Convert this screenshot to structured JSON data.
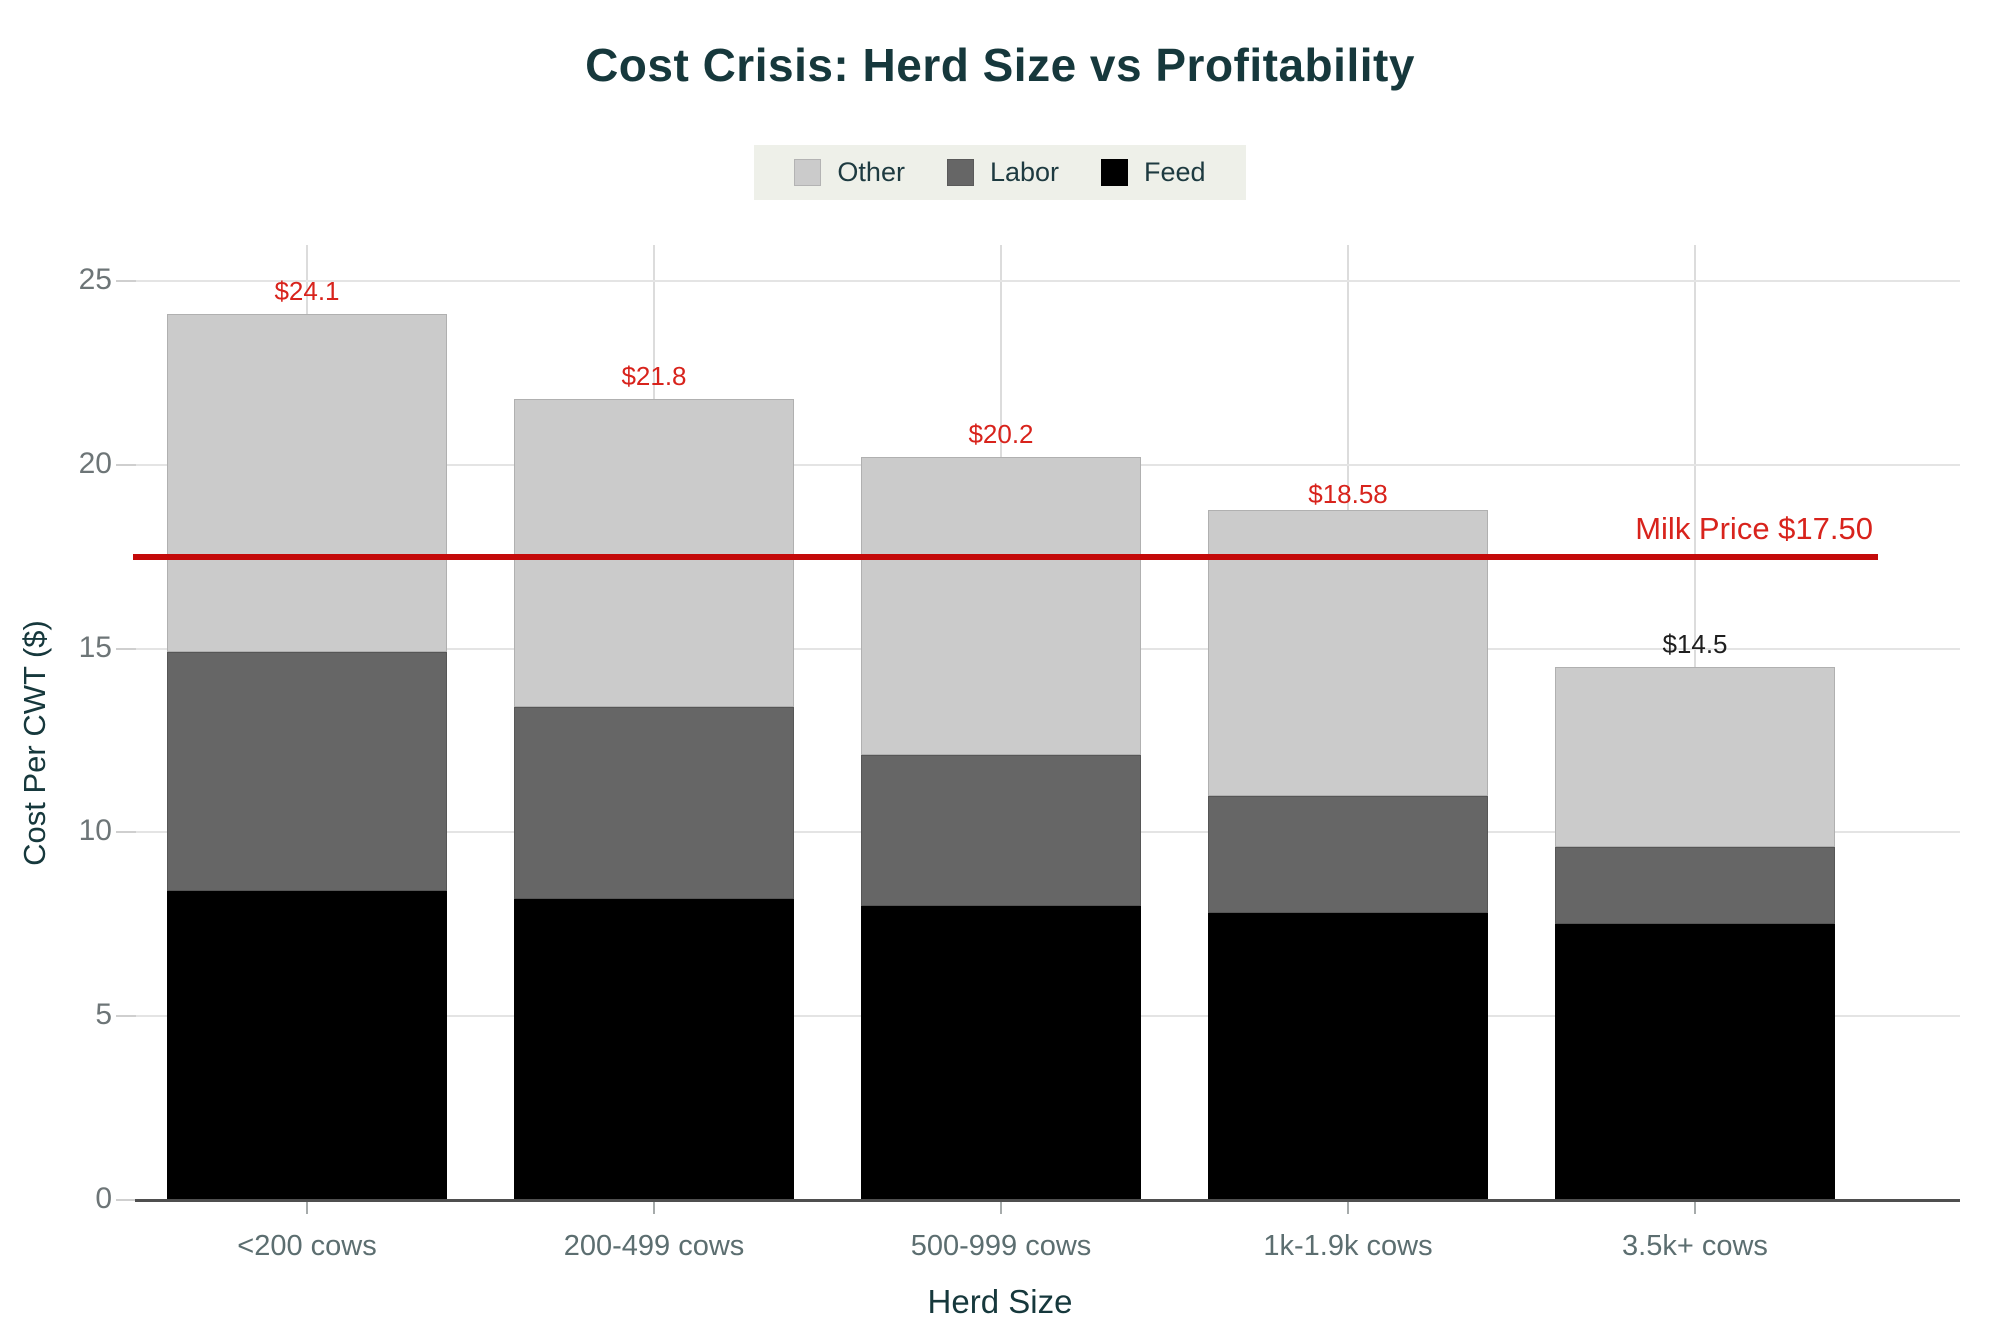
{
  "title": {
    "text": "Cost Crisis: Herd Size vs Profitability",
    "color": "#16383c"
  },
  "legend": {
    "background": "#eef0e9",
    "text_color": "#1d3a40",
    "items": [
      {
        "label": "Other",
        "color": "#cbcbcb",
        "border": "#b3b3b3"
      },
      {
        "label": "Labor",
        "color": "#666666",
        "border": "#5a5a5a"
      },
      {
        "label": "Feed",
        "color": "#000000",
        "border": "#000000"
      }
    ]
  },
  "chart_data": {
    "type": "bar",
    "stacked": true,
    "title": "Cost Crisis: Herd Size vs Profitability",
    "categories": [
      "<200 cows",
      "200-499 cows",
      "500-999 cows",
      "1k-1.9k cows",
      "3.5k+ cows"
    ],
    "series": [
      {
        "name": "Feed",
        "color": "#000000",
        "border": "#000000",
        "values": [
          8.4,
          8.2,
          8.0,
          7.8,
          7.5
        ]
      },
      {
        "name": "Labor",
        "color": "#666666",
        "border": "#565656",
        "values": [
          6.5,
          5.2,
          4.1,
          3.2,
          2.1
        ]
      },
      {
        "name": "Other",
        "color": "#cbcbcb",
        "border": "#b0b0b0",
        "values": [
          9.2,
          8.4,
          8.1,
          7.78,
          4.9
        ]
      }
    ],
    "totals": [
      24.1,
      21.8,
      20.2,
      18.58,
      14.5
    ],
    "total_labels": [
      "$24.1",
      "$21.8",
      "$20.2",
      "$18.58",
      "$14.5"
    ],
    "total_label_colors": [
      "#d8231c",
      "#d8231c",
      "#d8231c",
      "#d8231c",
      "#1f1f1f"
    ],
    "xlabel": "Herd Size",
    "ylabel": "Cost Per CWT ($)",
    "ylim": [
      0,
      25
    ],
    "yticks": [
      0,
      5,
      10,
      15,
      20,
      25
    ],
    "grid": true,
    "legend_position": "top-center",
    "reference_line": {
      "value": 17.5,
      "label": "Milk Price $17.50",
      "line_color": "#c40a0a",
      "label_color": "#d8231c"
    }
  },
  "axis_style": {
    "ytick_color": "#6d7577",
    "xtick_color": "#5c6e70",
    "grid_color": "#e4e4e4",
    "vgrid_color": "#dcdcdc",
    "tick_dash_color": "#cfcfcf",
    "axis_line_color": "#4f4f4f",
    "axis_title_color": "#16383c"
  }
}
